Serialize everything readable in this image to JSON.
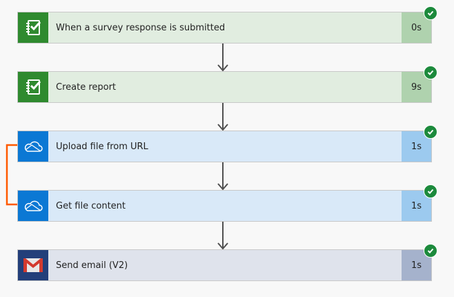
{
  "steps": [
    {
      "label": "When a survey response is submitted",
      "duration": "0s",
      "icon": "survey-checklist-icon",
      "status": "succeeded",
      "colors": {
        "icon_bg": "#2f8a2f",
        "body": "#e1ede0",
        "duration_bg": "#afd2ae"
      }
    },
    {
      "label": "Create report",
      "duration": "9s",
      "icon": "survey-checklist-icon",
      "status": "succeeded",
      "colors": {
        "icon_bg": "#2f8a2f",
        "body": "#e1ede0",
        "duration_bg": "#afd2ae"
      }
    },
    {
      "label": "Upload file from URL",
      "duration": "1s",
      "icon": "onedrive-cloud-icon",
      "status": "succeeded",
      "colors": {
        "icon_bg": "#0b78d4",
        "body": "#d9e9f8",
        "duration_bg": "#9ccaef"
      }
    },
    {
      "label": "Get file content",
      "duration": "1s",
      "icon": "onedrive-cloud-icon",
      "status": "succeeded",
      "colors": {
        "icon_bg": "#0b78d4",
        "body": "#d9e9f8",
        "duration_bg": "#9ccaef"
      }
    },
    {
      "label": "Send email (V2)",
      "duration": "1s",
      "icon": "gmail-icon",
      "status": "succeeded",
      "colors": {
        "icon_bg": "#233f7a",
        "body": "#dfe3ec",
        "duration_bg": "#a5b2cc"
      }
    }
  ],
  "connector_color": "#ff5a00",
  "success_color": "#1c8a3c"
}
